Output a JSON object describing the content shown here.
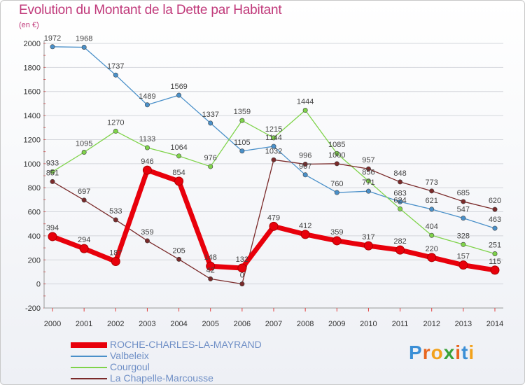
{
  "title": "Evolution du Montant de la Dette par Habitant",
  "unit_label": "(en €)",
  "logo": {
    "letters": [
      "P",
      "r",
      "o",
      "x",
      "i",
      "t",
      "i"
    ],
    "colors": [
      "#3b8fd6",
      "#e8661f",
      "#f2a21c",
      "#3aa23a",
      "#e8661f",
      "#3b8fd6",
      "#f2a21c"
    ]
  },
  "chart_data": {
    "type": "line",
    "title": "Evolution du Montant de la Dette par Habitant",
    "ylabel": "(en €)",
    "xlabel": "",
    "x": [
      "2000",
      "2001",
      "2002",
      "2003",
      "2004",
      "2005",
      "2006",
      "2007",
      "2008",
      "2009",
      "2010",
      "2011",
      "2012",
      "2013",
      "2014"
    ],
    "ylim": [
      -200,
      2000
    ],
    "yticks": [
      -200,
      0,
      200,
      400,
      600,
      800,
      1000,
      1200,
      1400,
      1600,
      1800,
      2000
    ],
    "grid": true,
    "legend_position": "bottom",
    "series": [
      {
        "name": "ROCHE-CHARLES-LA-MAYRAND",
        "color": "#e8000b",
        "emphasis": true,
        "values": [
          394,
          294,
          187,
          946,
          854,
          148,
          132,
          479,
          412,
          359,
          317,
          282,
          220,
          157,
          115
        ]
      },
      {
        "name": "Valbeleix",
        "color": "#4a90c9",
        "emphasis": false,
        "values": [
          1972,
          1968,
          1737,
          1489,
          1569,
          1337,
          1105,
          1144,
          907,
          760,
          771,
          683,
          621,
          547,
          463
        ]
      },
      {
        "name": "Courgoul",
        "color": "#7fd34a",
        "emphasis": false,
        "values": [
          933,
          1095,
          1270,
          1133,
          1064,
          976,
          1359,
          1215,
          1444,
          1085,
          856,
          624,
          404,
          328,
          251
        ]
      },
      {
        "name": "La Chapelle-Marcousse",
        "color": "#7a2a2a",
        "emphasis": false,
        "values": [
          851,
          697,
          533,
          359,
          205,
          42,
          0,
          1032,
          996,
          1000,
          957,
          848,
          773,
          685,
          620
        ]
      }
    ]
  }
}
